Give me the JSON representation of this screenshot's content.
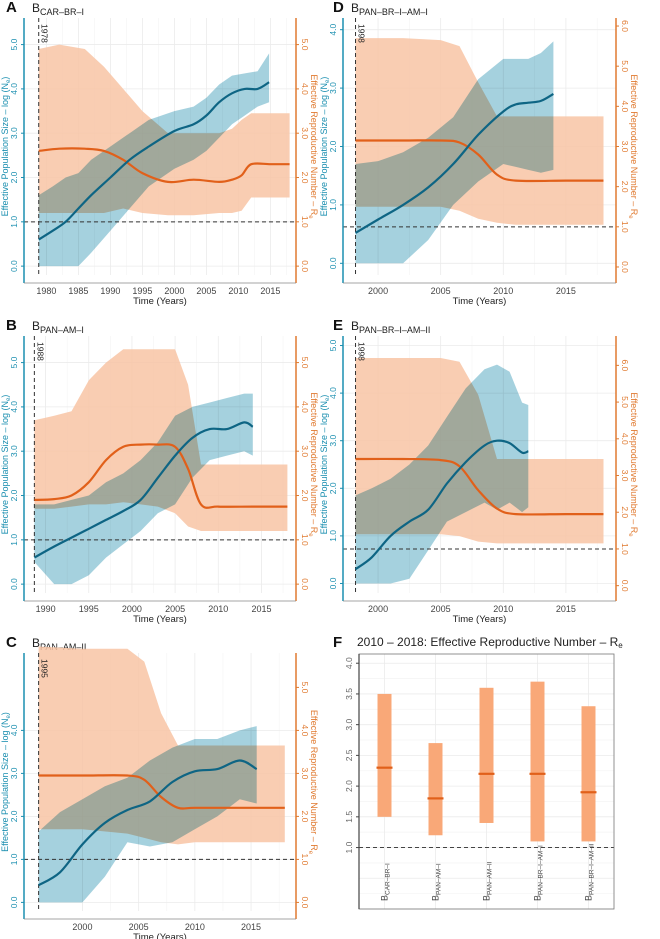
{
  "figure": {
    "colors": {
      "ne_line": "#0e6584",
      "ne_band": "#8ec6d6",
      "re_line": "#e1601a",
      "re_band": "#f8c4a4",
      "overlap": "#a9aca3",
      "ne_axis": "#1b8fb0",
      "re_axis": "#e07a30",
      "f_bar": "#f9a878",
      "f_median": "#e1601a",
      "grid": "#ebebeb"
    },
    "left_axis_label": "Effective Population Size – log (N",
    "left_axis_sub": "e",
    "left_axis_close": ")",
    "right_axis_label": "Effective Reproductive Number – R",
    "right_axis_sub": "e",
    "x_axis_label": "Time (Years)"
  },
  "chart_data": [
    {
      "type": "area",
      "panel": "A",
      "title_main": "B",
      "title_sub": "CAR–BR–I",
      "xlabel": "Time (Years)",
      "ylabel_left": "Effective Population Size – log (Ne)",
      "ylabel_right": "Effective Reproductive Number – Re",
      "xlim": [
        1976.5,
        2019
      ],
      "xticks": [
        1980,
        1985,
        1990,
        1995,
        2000,
        2005,
        2010,
        2015
      ],
      "ylim_left": [
        -0.2,
        5.6
      ],
      "yticks_left": [
        "0.0",
        "1.0",
        "2.0",
        "3.0",
        "4.0",
        "5.0"
      ],
      "ylim_right": [
        -0.2,
        5.6
      ],
      "yticks_right": [
        "0.0",
        "1.0",
        "2.0",
        "3.0",
        "4.0",
        "5.0"
      ],
      "threshold_re": 1.0,
      "origin_year": 1978,
      "origin_label": "1978",
      "ne": {
        "x": [
          1978.8,
          1981,
          1983,
          1985,
          1987,
          1990,
          1993,
          1996,
          2000,
          2003,
          2005,
          2007,
          2009,
          2011,
          2013,
          2014.8
        ],
        "median": [
          0.6,
          0.8,
          1.0,
          1.3,
          1.6,
          2.0,
          2.4,
          2.7,
          3.05,
          3.2,
          3.4,
          3.7,
          3.9,
          4.0,
          4.0,
          4.15
        ],
        "lower": [
          0.0,
          0.0,
          0.0,
          0.0,
          0.3,
          0.8,
          1.3,
          1.8,
          2.2,
          2.4,
          2.6,
          2.9,
          3.2,
          3.4,
          3.6,
          3.7
        ],
        "upper": [
          1.6,
          1.8,
          2.0,
          2.1,
          2.4,
          2.7,
          3.0,
          3.3,
          3.5,
          3.6,
          3.8,
          4.1,
          4.3,
          4.35,
          4.4,
          4.8
        ]
      },
      "re": {
        "x": [
          1978.8,
          1982,
          1986,
          1989,
          1992,
          1995,
          1999,
          2003,
          2007,
          2009,
          2010.5,
          2012,
          2015,
          2018
        ],
        "median": [
          2.6,
          2.65,
          2.65,
          2.6,
          2.4,
          2.1,
          1.9,
          1.95,
          1.9,
          1.95,
          2.05,
          2.3,
          2.3,
          2.3
        ],
        "lower": [
          1.2,
          1.2,
          1.2,
          1.2,
          1.3,
          1.2,
          1.15,
          1.15,
          1.2,
          1.2,
          1.25,
          1.55,
          1.55,
          1.55
        ],
        "upper": [
          4.9,
          5.0,
          4.9,
          4.5,
          4.0,
          3.5,
          3.0,
          3.0,
          3.0,
          3.1,
          3.3,
          3.45,
          3.45,
          3.45
        ]
      }
    },
    {
      "type": "area",
      "panel": "B",
      "title_main": "B",
      "title_sub": "PAN–AM–I",
      "xlabel": "Time (Years)",
      "xlim": [
        1987.5,
        2019
      ],
      "xticks": [
        1990,
        1995,
        2000,
        2005,
        2010,
        2015
      ],
      "ylim_left": [
        -0.2,
        5.6
      ],
      "yticks_left": [
        "0.0",
        "1.0",
        "2.0",
        "3.0",
        "4.0",
        "5.0"
      ],
      "ylim_right": [
        -0.2,
        5.6
      ],
      "yticks_right": [
        "0.0",
        "1.0",
        "2.0",
        "3.0",
        "4.0",
        "5.0"
      ],
      "threshold_re": 1.0,
      "origin_year": 1988,
      "origin_label": "1988",
      "ne": {
        "x": [
          1988.7,
          1991,
          1993,
          1995,
          1997,
          1999,
          2001,
          2003,
          2005,
          2007,
          2009,
          2011,
          2013,
          2014
        ],
        "median": [
          0.6,
          0.85,
          1.05,
          1.25,
          1.45,
          1.65,
          1.9,
          2.4,
          2.9,
          3.3,
          3.5,
          3.5,
          3.65,
          3.55
        ],
        "lower": [
          0.5,
          0.0,
          0.0,
          0.2,
          0.6,
          0.9,
          1.2,
          1.6,
          1.8,
          2.4,
          2.8,
          2.9,
          3.0,
          2.9
        ],
        "upper": [
          1.8,
          1.8,
          1.9,
          2.0,
          2.3,
          2.5,
          2.8,
          3.2,
          3.8,
          4.0,
          4.1,
          4.2,
          4.3,
          4.3
        ]
      },
      "re": {
        "x": [
          1988.7,
          1991,
          1993,
          1995,
          1997,
          1999,
          2001,
          2003,
          2005,
          2006.5,
          2008,
          2010,
          2014,
          2018
        ],
        "median": [
          1.9,
          1.92,
          2.0,
          2.3,
          2.8,
          3.1,
          3.15,
          3.15,
          3.1,
          2.6,
          1.8,
          1.75,
          1.75,
          1.75
        ],
        "lower": [
          1.7,
          1.7,
          1.75,
          1.8,
          1.8,
          1.85,
          1.8,
          1.75,
          1.6,
          1.3,
          1.2,
          1.2,
          1.2,
          1.2
        ],
        "upper": [
          3.7,
          3.8,
          3.9,
          4.6,
          5.0,
          5.3,
          5.3,
          5.3,
          5.3,
          4.5,
          2.7,
          2.7,
          2.7,
          2.7
        ]
      }
    },
    {
      "type": "area",
      "panel": "C",
      "title_main": "B",
      "title_sub": "PAN–AM–II",
      "xlabel": "Time (Years)",
      "xlim": [
        1994.8,
        2019
      ],
      "xticks": [
        2000,
        2005,
        2010,
        2015
      ],
      "ylim_left": [
        -0.2,
        5.8
      ],
      "yticks_left": [
        "0.0",
        "1.0",
        "2.0",
        "3.0",
        "4.0"
      ],
      "ylim_right": [
        -0.2,
        5.8
      ],
      "yticks_right": [
        "0.0",
        "1.0",
        "2.0",
        "3.0",
        "4.0",
        "5.0"
      ],
      "threshold_re": 1.0,
      "origin_year": 1995,
      "origin_label": "1995",
      "ne": {
        "x": [
          1996.1,
          1998,
          2000,
          2002,
          2004,
          2006,
          2008,
          2010,
          2012,
          2014,
          2015.5
        ],
        "median": [
          0.4,
          0.7,
          1.35,
          1.85,
          2.15,
          2.35,
          2.8,
          3.05,
          3.1,
          3.3,
          3.1
        ],
        "lower": [
          0.0,
          0.0,
          0.0,
          0.6,
          1.4,
          1.3,
          1.4,
          1.7,
          2.0,
          2.4,
          2.3
        ],
        "upper": [
          1.65,
          2.1,
          2.4,
          2.7,
          2.9,
          3.3,
          3.6,
          3.8,
          3.8,
          4.0,
          4.1
        ]
      },
      "re": {
        "x": [
          1996.1,
          2000,
          2004,
          2005.5,
          2007,
          2008.5,
          2010,
          2014,
          2018
        ],
        "median": [
          2.95,
          2.95,
          2.95,
          2.85,
          2.45,
          2.2,
          2.2,
          2.2,
          2.2
        ],
        "lower": [
          1.7,
          1.7,
          1.6,
          1.5,
          1.4,
          1.35,
          1.4,
          1.4,
          1.4
        ],
        "upper": [
          5.95,
          5.9,
          5.9,
          5.6,
          4.4,
          3.65,
          3.65,
          3.65,
          3.65
        ]
      }
    },
    {
      "type": "area",
      "panel": "D",
      "title_main": "B",
      "title_sub": "PAN–BR–I–AM–I",
      "xlabel": "Time (Years)",
      "xlim": [
        1997.2,
        2019
      ],
      "xticks": [
        2000,
        2005,
        2010,
        2015
      ],
      "ylim_left": [
        -0.2,
        4.2
      ],
      "yticks_left": [
        "0.0",
        "1.0",
        "2.0",
        "3.0",
        "4.0"
      ],
      "ylim_right": [
        -0.2,
        6.2
      ],
      "yticks_right": [
        "0.0",
        "1.0",
        "2.0",
        "3.0",
        "4.0",
        "5.0",
        "6.0"
      ],
      "threshold_re": 1.0,
      "origin_year": 1998,
      "origin_label": "1998",
      "ne": {
        "x": [
          1998.2,
          2000,
          2002,
          2004,
          2006,
          2008,
          2010,
          2011,
          2012,
          2013,
          2014
        ],
        "median": [
          0.52,
          0.75,
          1.0,
          1.3,
          1.7,
          2.2,
          2.6,
          2.72,
          2.75,
          2.78,
          2.9
        ],
        "lower": [
          0.0,
          0.0,
          0.0,
          0.4,
          1.0,
          1.4,
          1.7,
          1.65,
          1.6,
          1.55,
          1.6
        ],
        "upper": [
          1.7,
          1.75,
          1.9,
          2.15,
          2.5,
          3.15,
          3.5,
          3.5,
          3.5,
          3.6,
          3.8
        ]
      },
      "re": {
        "x": [
          1998.2,
          2002,
          2005,
          2006.5,
          2008,
          2009.5,
          2011,
          2015,
          2018
        ],
        "median": [
          3.15,
          3.15,
          3.15,
          3.1,
          2.8,
          2.3,
          2.15,
          2.15,
          2.15
        ],
        "lower": [
          1.5,
          1.5,
          1.5,
          1.4,
          1.2,
          1.1,
          1.05,
          1.05,
          1.05
        ],
        "upper": [
          5.7,
          5.7,
          5.65,
          5.5,
          4.6,
          3.75,
          3.75,
          3.75,
          3.75
        ]
      }
    },
    {
      "type": "area",
      "panel": "E",
      "title_main": "B",
      "title_sub": "PAN–BR–I–AM–II",
      "xlabel": "Time (Years)",
      "xlim": [
        1997.2,
        2019
      ],
      "xticks": [
        2000,
        2005,
        2010,
        2015
      ],
      "ylim_left": [
        -0.2,
        5.2
      ],
      "yticks_left": [
        "0.0",
        "1.0",
        "2.0",
        "3.0",
        "4.0",
        "5.0"
      ],
      "ylim_right": [
        -0.2,
        6.8
      ],
      "yticks_right": [
        "0.0",
        "1.0",
        "2.0",
        "3.0",
        "4.0",
        "5.0",
        "6.0"
      ],
      "threshold_re": 1.0,
      "origin_year": 1998,
      "origin_label": "1998",
      "ne": {
        "x": [
          1998.2,
          1999.5,
          2001,
          2002.5,
          2004,
          2005.5,
          2007,
          2008.5,
          2009.5,
          2010.5,
          2011.5,
          2012
        ],
        "median": [
          0.3,
          0.55,
          1.0,
          1.3,
          1.55,
          2.1,
          2.55,
          2.9,
          3.0,
          2.95,
          2.75,
          2.78
        ],
        "lower": [
          0.0,
          0.0,
          0.0,
          0.1,
          0.7,
          1.3,
          1.5,
          1.7,
          1.55,
          1.7,
          1.5,
          1.6
        ],
        "upper": [
          1.85,
          2.0,
          2.2,
          2.5,
          2.9,
          3.5,
          4.1,
          4.5,
          4.6,
          4.45,
          3.8,
          3.75
        ]
      },
      "re": {
        "x": [
          1998.2,
          2002,
          2005,
          2006.5,
          2008,
          2009.5,
          2011,
          2015,
          2018
        ],
        "median": [
          3.45,
          3.45,
          3.42,
          3.25,
          2.6,
          2.1,
          1.95,
          1.95,
          1.95
        ],
        "lower": [
          1.4,
          1.4,
          1.4,
          1.35,
          1.2,
          1.15,
          1.15,
          1.15,
          1.15
        ],
        "upper": [
          6.2,
          6.2,
          6.2,
          6.1,
          5.2,
          3.45,
          3.45,
          3.45,
          3.45
        ]
      }
    },
    {
      "type": "bar",
      "panel": "F",
      "title": "2010 – 2018: Effective Reproductive Number – R",
      "title_sub": "e",
      "categories_main": [
        "B",
        "B",
        "B",
        "B",
        "B"
      ],
      "categories_sub": [
        "CAR–BR–I",
        "PAN–AM–I",
        "PAN–AM–II",
        "PAN–BR–I–AM–I",
        "PAN–BR–I–AM–II"
      ],
      "median": [
        2.3,
        1.8,
        2.2,
        2.2,
        1.9
      ],
      "lower": [
        1.5,
        1.2,
        1.4,
        1.1,
        1.1
      ],
      "upper": [
        3.5,
        2.7,
        3.6,
        3.7,
        3.3
      ],
      "ylim": [
        0.0,
        4.15
      ],
      "yticks": [
        "1.0",
        "1.5",
        "2.0",
        "2.5",
        "3.0",
        "3.5",
        "4.0"
      ],
      "threshold": 1.0
    }
  ]
}
